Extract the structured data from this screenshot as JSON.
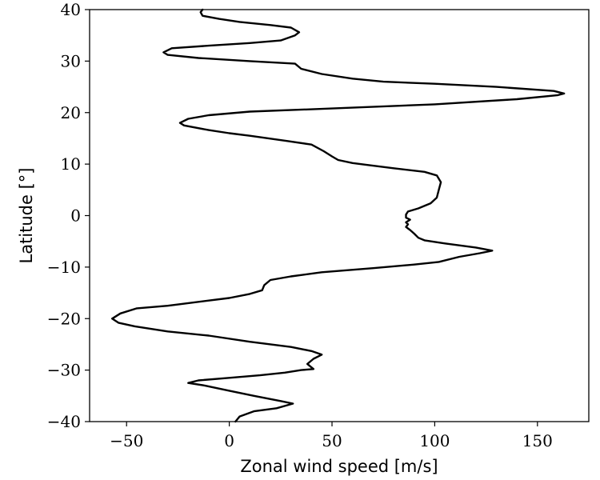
{
  "chart_data": {
    "type": "line",
    "title": "",
    "xlabel": "Zonal wind speed [m/s]",
    "ylabel": "Latitude [°]",
    "xlim": [
      -68,
      175
    ],
    "ylim": [
      -40,
      40
    ],
    "grid": false,
    "x_ticks": [
      -50,
      0,
      50,
      100,
      150
    ],
    "x_tick_labels": [
      "−50",
      "0",
      "50",
      "100",
      "150"
    ],
    "y_ticks": [
      -40,
      -30,
      -20,
      -10,
      0,
      10,
      20,
      30,
      40
    ],
    "y_tick_labels": [
      "−40",
      "−30",
      "−20",
      "−10",
      "0",
      "10",
      "20",
      "30",
      "40"
    ],
    "series": [
      {
        "color": "#000000",
        "points": [
          [
            3,
            -40
          ],
          [
            5,
            -39
          ],
          [
            12,
            -38
          ],
          [
            23,
            -37.4
          ],
          [
            31,
            -36.5
          ],
          [
            25,
            -36
          ],
          [
            12,
            -35
          ],
          [
            0,
            -34
          ],
          [
            -12,
            -33
          ],
          [
            -20,
            -32.5
          ],
          [
            -15,
            -32
          ],
          [
            0,
            -31.5
          ],
          [
            15,
            -31
          ],
          [
            27,
            -30.5
          ],
          [
            35,
            -30
          ],
          [
            41,
            -29.8
          ],
          [
            38,
            -28.8
          ],
          [
            41,
            -27.8
          ],
          [
            45,
            -27
          ],
          [
            40,
            -26.3
          ],
          [
            30,
            -25.5
          ],
          [
            10,
            -24.5
          ],
          [
            -10,
            -23.3
          ],
          [
            -30,
            -22.5
          ],
          [
            -46,
            -21.5
          ],
          [
            -54,
            -20.8
          ],
          [
            -57,
            -20
          ],
          [
            -53,
            -19
          ],
          [
            -45,
            -18
          ],
          [
            -30,
            -17.5
          ],
          [
            -10,
            -16.5
          ],
          [
            0,
            -16
          ],
          [
            10,
            -15.2
          ],
          [
            16,
            -14.5
          ],
          [
            17,
            -13.5
          ],
          [
            20,
            -12.5
          ],
          [
            30,
            -11.8
          ],
          [
            45,
            -11
          ],
          [
            70,
            -10.2
          ],
          [
            90,
            -9.5
          ],
          [
            102,
            -9
          ],
          [
            112,
            -8
          ],
          [
            122,
            -7.3
          ],
          [
            128,
            -6.8
          ],
          [
            120,
            -6.2
          ],
          [
            105,
            -5.4
          ],
          [
            95,
            -4.8
          ],
          [
            92,
            -4.3
          ],
          [
            90,
            -3.5
          ],
          [
            88,
            -2.8
          ],
          [
            86,
            -2.2
          ],
          [
            87,
            -1.7
          ],
          [
            86,
            -1.3
          ],
          [
            88,
            -0.8
          ],
          [
            86,
            -0.4
          ],
          [
            86,
            0.2
          ],
          [
            87,
            0.8
          ],
          [
            92,
            1.4
          ],
          [
            98,
            2.4
          ],
          [
            101,
            3.5
          ],
          [
            102,
            5
          ],
          [
            103,
            6.5
          ],
          [
            101,
            7.8
          ],
          [
            95,
            8.5
          ],
          [
            80,
            9.2
          ],
          [
            68,
            9.8
          ],
          [
            60,
            10.2
          ],
          [
            53,
            10.8
          ],
          [
            50,
            11.5
          ],
          [
            46,
            12.5
          ],
          [
            40,
            13.8
          ],
          [
            28,
            14.5
          ],
          [
            10,
            15.5
          ],
          [
            0,
            16
          ],
          [
            -10,
            16.6
          ],
          [
            -22,
            17.5
          ],
          [
            -24,
            18
          ],
          [
            -20,
            18.8
          ],
          [
            -10,
            19.5
          ],
          [
            10,
            20.2
          ],
          [
            50,
            20.8
          ],
          [
            100,
            21.6
          ],
          [
            140,
            22.6
          ],
          [
            160,
            23.4
          ],
          [
            163,
            23.7
          ],
          [
            158,
            24.2
          ],
          [
            130,
            25
          ],
          [
            100,
            25.6
          ],
          [
            75,
            26
          ],
          [
            60,
            26.6
          ],
          [
            45,
            27.5
          ],
          [
            35,
            28.5
          ],
          [
            32,
            29.5
          ],
          [
            10,
            30
          ],
          [
            -15,
            30.6
          ],
          [
            -30,
            31.2
          ],
          [
            -32,
            31.7
          ],
          [
            -28,
            32.5
          ],
          [
            -10,
            33
          ],
          [
            10,
            33.5
          ],
          [
            25,
            34
          ],
          [
            32,
            35
          ],
          [
            34,
            35.6
          ],
          [
            30,
            36.5
          ],
          [
            20,
            37
          ],
          [
            5,
            37.6
          ],
          [
            -5,
            38.2
          ],
          [
            -13,
            38.8
          ],
          [
            -14,
            39.5
          ],
          [
            -13,
            40
          ]
        ]
      }
    ]
  }
}
